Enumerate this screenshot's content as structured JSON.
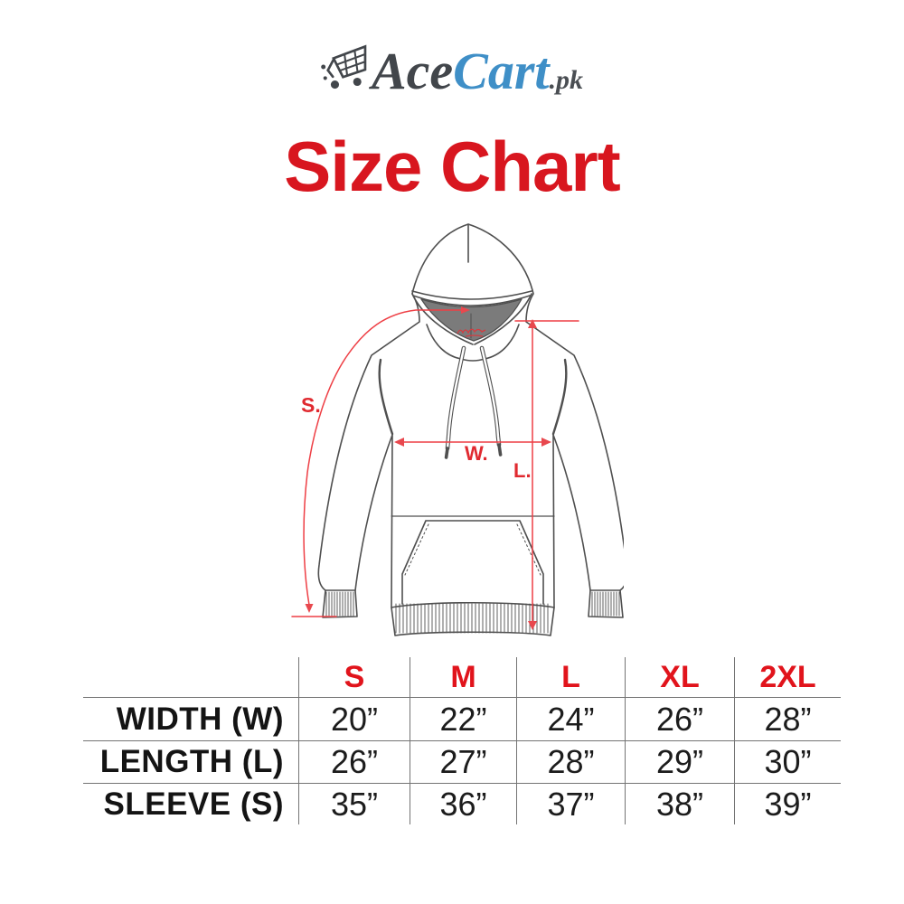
{
  "logo": {
    "brand_dark": "Ace",
    "brand_blue": "Cart",
    "suffix": ".pk",
    "icon": "shopping-cart-icon"
  },
  "title": "Size Chart",
  "diagram": {
    "sleeve_label": "S.",
    "width_label": "W.",
    "length_label": "L."
  },
  "size_table": {
    "sizes": [
      "S",
      "M",
      "L",
      "XL",
      "2XL"
    ],
    "rows": [
      {
        "label": "WIDTH (W)",
        "values": [
          "20”",
          "22”",
          "24”",
          "26”",
          "28”"
        ]
      },
      {
        "label": "LENGTH (L)",
        "values": [
          "26”",
          "27”",
          "28”",
          "29”",
          "30”"
        ]
      },
      {
        "label": "SLEEVE (S)",
        "values": [
          "35”",
          "36”",
          "37”",
          "38”",
          "39”"
        ]
      }
    ]
  },
  "colors": {
    "title_red": "#d8161f",
    "size_header_red": "#e1141c",
    "annotation_red": "#ee3f45",
    "logo_blue": "#3f8fc7",
    "logo_charcoal": "#42464b",
    "hood_lining_gray": "#7b7b7b",
    "table_line_gray": "#747474"
  }
}
